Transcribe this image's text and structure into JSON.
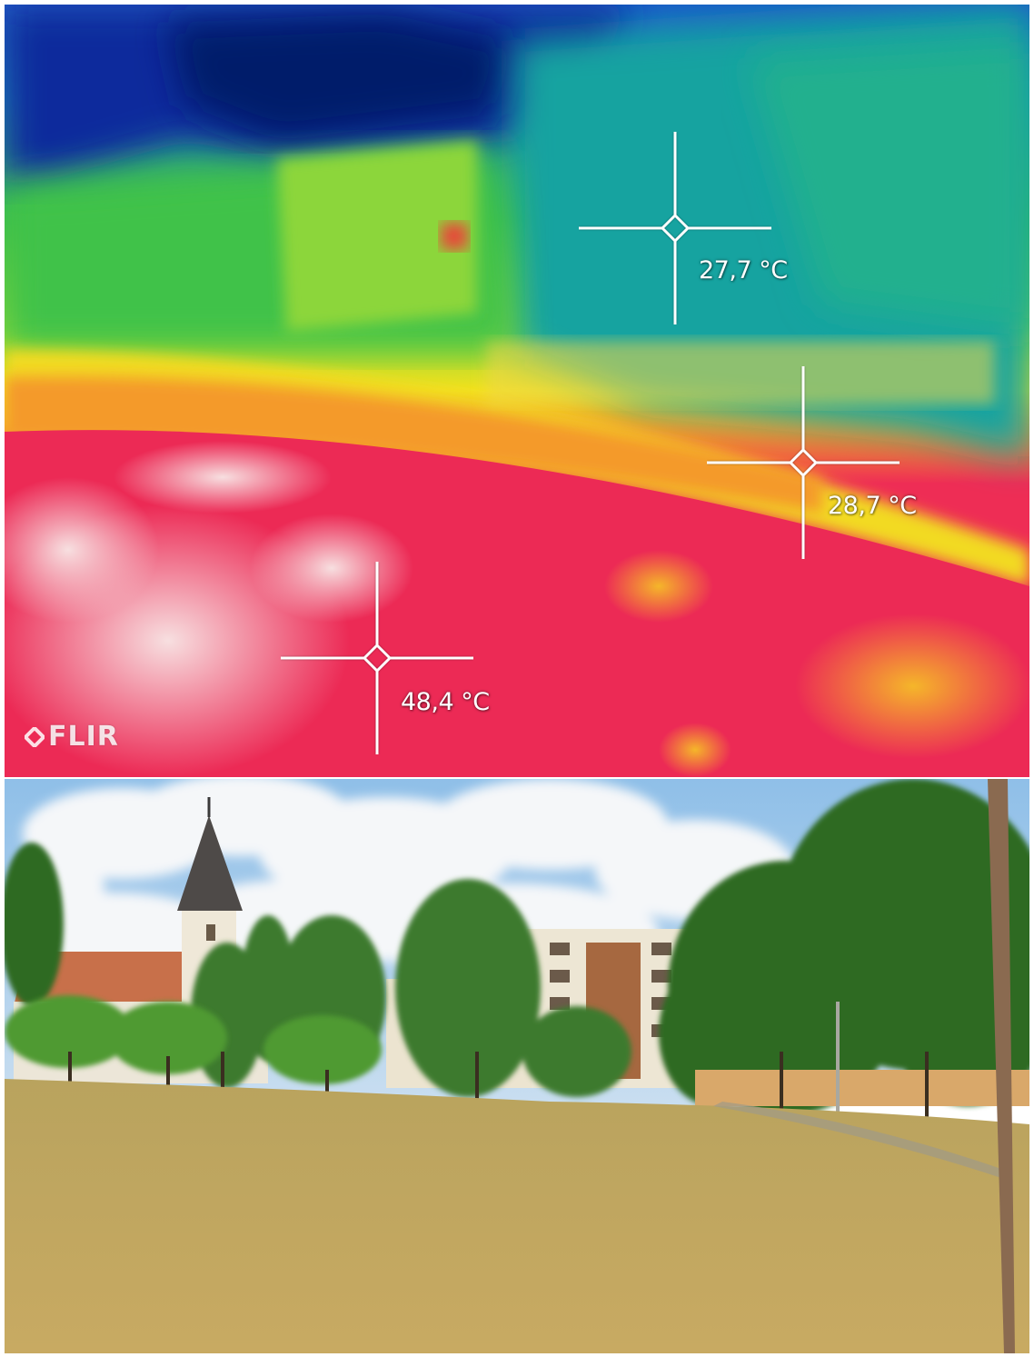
{
  "thermal": {
    "logo_text": "FLIR",
    "measurements": [
      {
        "label": "27,7 °C"
      },
      {
        "label": "28,7 °C"
      },
      {
        "label": "48,4 °C"
      }
    ],
    "palette": {
      "cold": "#0a2a9a",
      "cool": "#16a0a0",
      "mid": "#3cc63c",
      "warm": "#f0e020",
      "hot": "#ee2850",
      "hottest": "#f6d6d8"
    }
  },
  "photo": {
    "colors": {
      "sky": "#9cc8ee",
      "cloud": "#f4f6f8",
      "grass": "#c4a860",
      "foliage": "#3a7a2c",
      "building": "#ece6d6",
      "roof": "#c8704a"
    }
  }
}
